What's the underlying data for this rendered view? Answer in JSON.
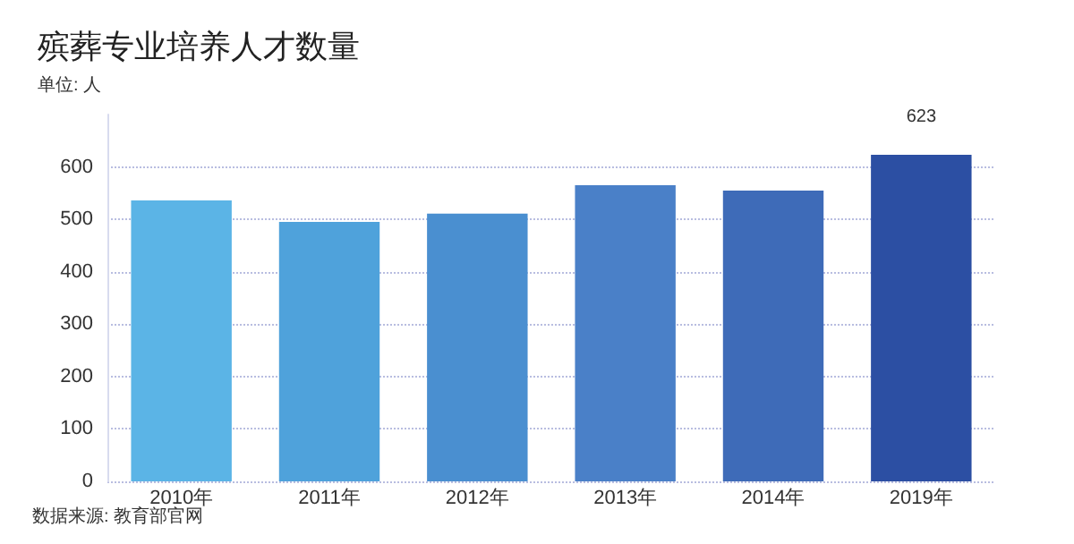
{
  "chart_data": {
    "type": "bar",
    "title": "殡葬专业培养人才数量",
    "subtitle": "单位: 人",
    "categories": [
      "2010年",
      "2011年",
      "2012年",
      "2013年",
      "2014年",
      "2019年"
    ],
    "values": [
      536,
      495,
      511,
      565,
      555,
      623
    ],
    "colors": [
      "#5bb4e6",
      "#4fa2db",
      "#4a8fd0",
      "#4a80c8",
      "#3e6bb8",
      "#2c4fa3"
    ],
    "value_labels": [
      null,
      null,
      null,
      null,
      null,
      "623"
    ],
    "ylim": [
      0,
      700
    ],
    "yticks": [
      0,
      100,
      200,
      300,
      400,
      500,
      600
    ],
    "grid": "y",
    "annotations": [
      "数据来源: 教育部官网"
    ]
  }
}
